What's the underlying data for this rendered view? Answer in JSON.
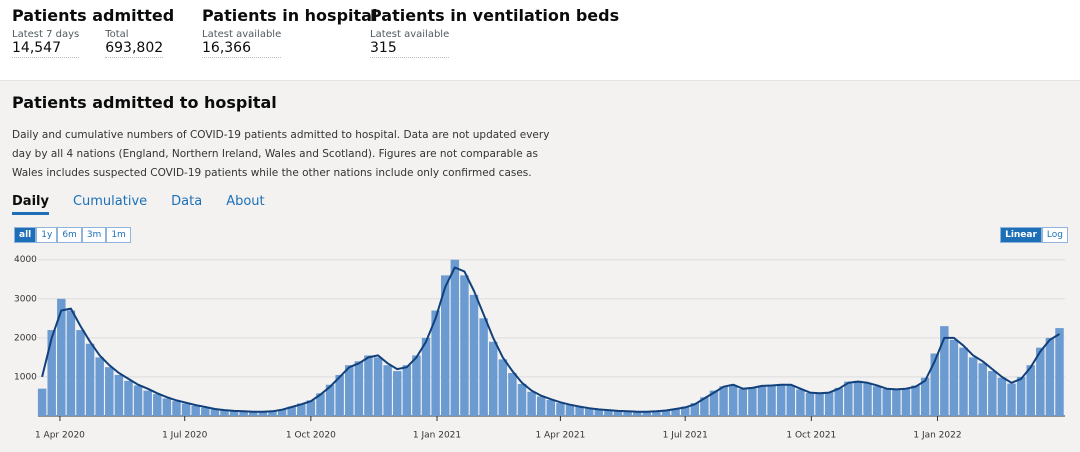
{
  "header": {
    "stats": [
      {
        "title": "Patients admitted",
        "items": [
          {
            "label": "Latest 7 days",
            "value": "14,547"
          },
          {
            "label": "Total",
            "value": "693,802"
          }
        ]
      },
      {
        "title": "Patients in hospital",
        "items": [
          {
            "label": "Latest available",
            "value": "16,366"
          }
        ]
      },
      {
        "title": "Patients in ventilation beds",
        "items": [
          {
            "label": "Latest available",
            "value": "315"
          }
        ]
      }
    ]
  },
  "card": {
    "title": "Patients admitted to hospital",
    "description": "Daily and cumulative numbers of COVID-19 patients admitted to hospital. Data are not updated every day by all 4 nations (England, Northern Ireland, Wales and Scotland). Figures are not comparable as Wales includes suspected COVID-19 patients while the other nations include only confirmed cases.",
    "tabs": [
      "Daily",
      "Cumulative",
      "Data",
      "About"
    ],
    "range_buttons": [
      "all",
      "1y",
      "6m",
      "3m",
      "1m"
    ],
    "scale_buttons": [
      "Linear",
      "Log"
    ]
  },
  "chart_data": {
    "type": "bar",
    "x": [
      "2020-03-19",
      "2020-03-26",
      "2020-04-02",
      "2020-04-09",
      "2020-04-16",
      "2020-04-23",
      "2020-04-30",
      "2020-05-07",
      "2020-05-14",
      "2020-05-21",
      "2020-05-28",
      "2020-06-04",
      "2020-06-11",
      "2020-06-18",
      "2020-06-25",
      "2020-07-02",
      "2020-07-09",
      "2020-07-16",
      "2020-07-23",
      "2020-07-30",
      "2020-08-06",
      "2020-08-13",
      "2020-08-20",
      "2020-08-27",
      "2020-09-03",
      "2020-09-10",
      "2020-09-17",
      "2020-09-24",
      "2020-10-01",
      "2020-10-08",
      "2020-10-15",
      "2020-10-22",
      "2020-10-29",
      "2020-11-05",
      "2020-11-12",
      "2020-11-19",
      "2020-11-26",
      "2020-12-03",
      "2020-12-10",
      "2020-12-17",
      "2020-12-24",
      "2020-12-31",
      "2021-01-07",
      "2021-01-14",
      "2021-01-21",
      "2021-01-28",
      "2021-02-04",
      "2021-02-11",
      "2021-02-18",
      "2021-02-25",
      "2021-03-04",
      "2021-03-11",
      "2021-03-18",
      "2021-03-25",
      "2021-04-01",
      "2021-04-08",
      "2021-04-15",
      "2021-04-22",
      "2021-04-29",
      "2021-05-06",
      "2021-05-13",
      "2021-05-20",
      "2021-05-27",
      "2021-06-03",
      "2021-06-10",
      "2021-06-17",
      "2021-06-24",
      "2021-07-01",
      "2021-07-08",
      "2021-07-15",
      "2021-07-22",
      "2021-07-29",
      "2021-08-05",
      "2021-08-12",
      "2021-08-19",
      "2021-08-26",
      "2021-09-02",
      "2021-09-09",
      "2021-09-16",
      "2021-09-23",
      "2021-09-30",
      "2021-10-07",
      "2021-10-14",
      "2021-10-21",
      "2021-10-28",
      "2021-11-04",
      "2021-11-11",
      "2021-11-18",
      "2021-11-25",
      "2021-12-02",
      "2021-12-09",
      "2021-12-16",
      "2021-12-23",
      "2021-12-30",
      "2022-01-06",
      "2022-01-13",
      "2022-01-20",
      "2022-01-27",
      "2022-02-03",
      "2022-02-10",
      "2022-02-17",
      "2022-02-24",
      "2022-03-03",
      "2022-03-10",
      "2022-03-17",
      "2022-03-24",
      "2022-03-31"
    ],
    "series": [
      {
        "type": "bar",
        "color": "#6b9bd1",
        "values": [
          700,
          2200,
          3000,
          2700,
          2200,
          1850,
          1500,
          1250,
          1050,
          900,
          780,
          650,
          560,
          450,
          380,
          320,
          260,
          210,
          170,
          140,
          120,
          110,
          100,
          110,
          120,
          170,
          240,
          320,
          400,
          580,
          800,
          1050,
          1300,
          1400,
          1550,
          1500,
          1300,
          1150,
          1300,
          1550,
          2000,
          2700,
          3600,
          4000,
          3600,
          3100,
          2500,
          1900,
          1450,
          1100,
          820,
          620,
          500,
          410,
          330,
          280,
          230,
          190,
          160,
          140,
          120,
          110,
          100,
          110,
          120,
          150,
          190,
          240,
          330,
          480,
          650,
          760,
          780,
          690,
          740,
          780,
          800,
          820,
          790,
          680,
          590,
          570,
          610,
          720,
          880,
          900,
          840,
          760,
          690,
          670,
          710,
          780,
          980,
          1600,
          2300,
          1950,
          1750,
          1500,
          1350,
          1150,
          980,
          830,
          1000,
          1300,
          1750,
          2000,
          2250
        ]
      },
      {
        "type": "line",
        "color": "#12407a",
        "values": [
          1000,
          2000,
          2700,
          2750,
          2300,
          1900,
          1550,
          1300,
          1100,
          950,
          800,
          700,
          580,
          480,
          400,
          340,
          280,
          230,
          180,
          150,
          130,
          120,
          110,
          110,
          120,
          160,
          230,
          300,
          380,
          550,
          750,
          1000,
          1250,
          1350,
          1500,
          1550,
          1350,
          1200,
          1250,
          1500,
          1900,
          2500,
          3300,
          3800,
          3700,
          3200,
          2600,
          2000,
          1500,
          1150,
          850,
          650,
          520,
          430,
          350,
          290,
          240,
          200,
          170,
          150,
          130,
          120,
          110,
          110,
          120,
          140,
          180,
          220,
          300,
          450,
          600,
          750,
          800,
          700,
          720,
          770,
          780,
          800,
          800,
          700,
          600,
          580,
          600,
          700,
          850,
          880,
          850,
          780,
          700,
          680,
          700,
          750,
          900,
          1400,
          2000,
          2000,
          1800,
          1550,
          1400,
          1200,
          1000,
          850,
          950,
          1250,
          1650,
          1950,
          2100
        ]
      }
    ],
    "xlim": [
      "2020-03-16",
      "2022-04-04"
    ],
    "xticks": [
      {
        "value": "2020-04-01",
        "label": "1 Apr 2020"
      },
      {
        "value": "2020-07-01",
        "label": "1 Jul 2020"
      },
      {
        "value": "2020-10-01",
        "label": "1 Oct 2020"
      },
      {
        "value": "2021-01-01",
        "label": "1 Jan 2021"
      },
      {
        "value": "2021-04-01",
        "label": "1 Apr 2021"
      },
      {
        "value": "2021-07-01",
        "label": "1 Jul 2021"
      },
      {
        "value": "2021-10-01",
        "label": "1 Oct 2021"
      },
      {
        "value": "2022-01-01",
        "label": "1 Jan 2022"
      }
    ],
    "ylim": [
      0,
      4300
    ],
    "yticks": [
      1000,
      2000,
      3000,
      4000
    ],
    "grid": true
  }
}
